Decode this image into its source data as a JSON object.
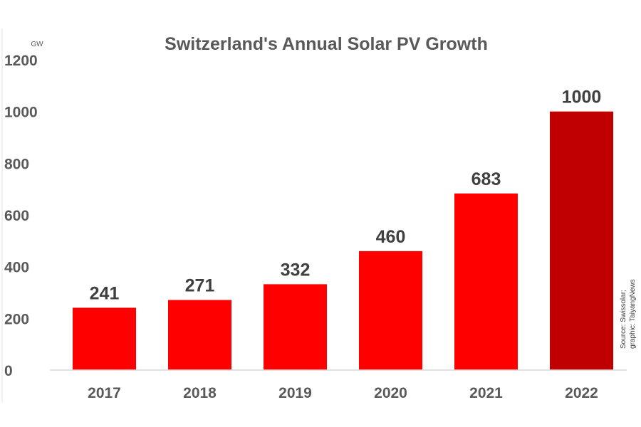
{
  "chart_data": {
    "type": "bar",
    "title": "Switzerland's Annual Solar PV Growth",
    "ylabel": "GW",
    "xlabel": "",
    "categories": [
      "2017",
      "2018",
      "2019",
      "2020",
      "2021",
      "2022"
    ],
    "values": [
      241,
      271,
      332,
      460,
      683,
      1000
    ],
    "data_labels": [
      "241",
      "271",
      "332",
      "460",
      "683",
      "1000"
    ],
    "ylim": [
      0,
      1200
    ],
    "yticks": [
      0,
      200,
      400,
      600,
      800,
      1000,
      1200
    ],
    "grid": false,
    "legend": "none",
    "colors": {
      "bar": "#ff0000",
      "highlight_bar": "#c00000",
      "highlight_category": "2022",
      "text": "#595959",
      "axis": "#d9d9d9"
    },
    "source_note": [
      "Source: Swissolar;",
      "graphic: TaiyangNews"
    ]
  }
}
